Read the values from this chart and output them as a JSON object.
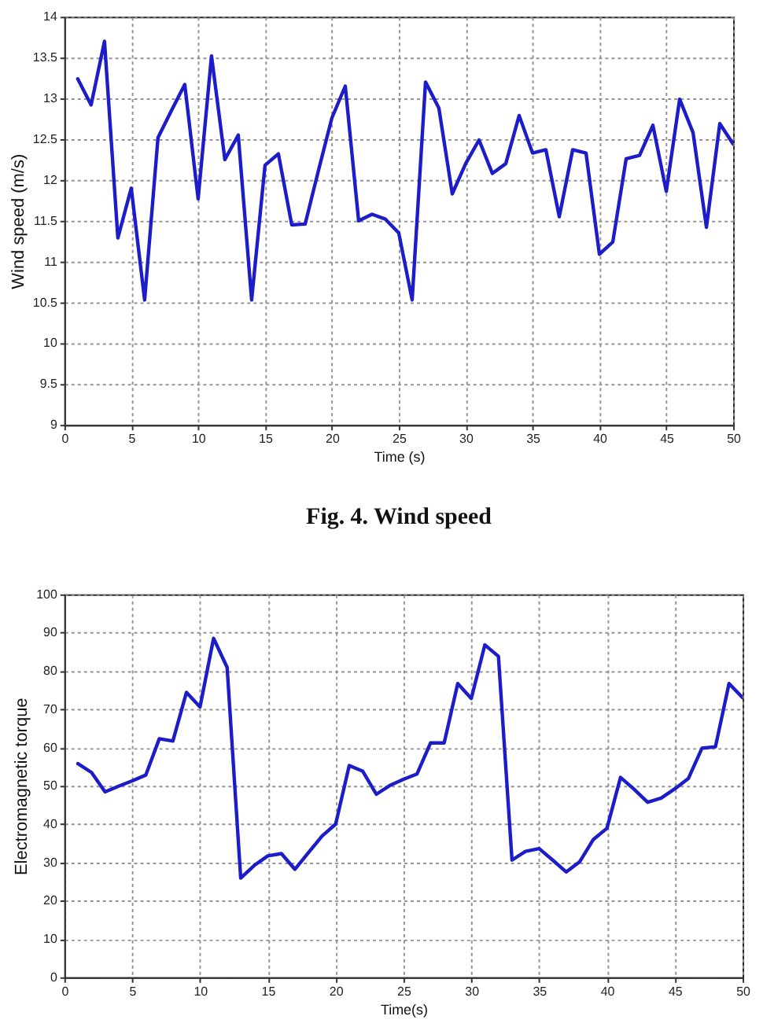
{
  "chart_data": [
    {
      "type": "line",
      "xlabel": "Time (s)",
      "ylabel": "Wind speed (m/s)",
      "annotations": [
        "Fig. 4. Wind speed"
      ],
      "x": [
        1,
        2,
        3,
        4,
        5,
        6,
        7,
        8,
        9,
        10,
        11,
        12,
        13,
        14,
        15,
        16,
        17,
        18,
        19,
        20,
        21,
        22,
        23,
        24,
        25,
        26,
        27,
        28,
        29,
        30,
        31,
        32,
        33,
        34,
        35,
        36,
        37,
        38,
        39,
        40,
        41,
        42,
        43,
        44,
        45,
        46,
        47,
        48,
        49,
        50
      ],
      "series": [
        {
          "color": "#1c1cc8",
          "values": [
            13.24,
            12.92,
            13.7,
            11.29,
            11.9,
            10.53,
            12.52,
            12.85,
            13.17,
            11.77,
            13.52,
            12.25,
            12.55,
            10.53,
            12.18,
            12.32,
            11.45,
            11.46,
            12.12,
            12.76,
            13.15,
            11.5,
            11.58,
            11.52,
            11.35,
            10.53,
            13.2,
            12.88,
            11.83,
            12.2,
            12.49,
            12.08,
            12.2,
            12.79,
            12.33,
            12.37,
            11.55,
            12.37,
            12.33,
            11.09,
            11.24,
            12.26,
            12.3,
            12.67,
            11.86,
            12.99,
            12.58,
            11.42,
            12.69,
            12.44
          ]
        }
      ],
      "xlim": [
        0,
        50
      ],
      "xticks": [
        0,
        5,
        10,
        15,
        20,
        25,
        30,
        35,
        40,
        45,
        50
      ],
      "ylim": [
        9,
        14
      ],
      "yticks": [
        9,
        9.5,
        10,
        10.5,
        11,
        11.5,
        12,
        12.5,
        13,
        13.5,
        14
      ],
      "grid": true,
      "legend": false,
      "marker": "none",
      "line_style": "solid"
    },
    {
      "type": "line",
      "xlabel": "Time(s)",
      "ylabel": "Electromagnetic torque",
      "x": [
        1,
        2,
        3,
        4,
        5,
        6,
        7,
        8,
        9,
        10,
        11,
        12,
        13,
        14,
        15,
        16,
        17,
        18,
        19,
        20,
        21,
        22,
        23,
        24,
        25,
        26,
        27,
        28,
        29,
        30,
        31,
        32,
        33,
        34,
        35,
        36,
        37,
        38,
        39,
        40,
        41,
        42,
        43,
        44,
        45,
        46,
        47,
        48,
        49,
        50
      ],
      "series": [
        {
          "color": "#1c1cc8",
          "values": [
            55.8,
            53.5,
            48.4,
            49.9,
            51.3,
            52.8,
            62.3,
            61.7,
            74.4,
            70.6,
            88.5,
            80.9,
            25.9,
            29.2,
            31.7,
            32.3,
            28.2,
            32.6,
            36.9,
            40,
            55.3,
            53.8,
            47.8,
            50.1,
            51.7,
            53.1,
            61.2,
            61.2,
            76.7,
            72.8,
            86.8,
            83.8,
            30.6,
            32.9,
            33.6,
            30.6,
            27.5,
            30.2,
            36,
            38.9,
            52.2,
            49.1,
            45.7,
            46.8,
            49.2,
            51.9,
            59.8,
            60.2,
            76.7,
            73
          ]
        }
      ],
      "xlim": [
        0,
        50
      ],
      "xticks": [
        0,
        5,
        10,
        15,
        20,
        25,
        30,
        35,
        40,
        45,
        50
      ],
      "ylim": [
        0,
        100
      ],
      "yticks": [
        0,
        10,
        20,
        30,
        40,
        50,
        60,
        70,
        80,
        90,
        100
      ],
      "grid": true,
      "legend": false,
      "marker": "none",
      "line_style": "solid"
    }
  ]
}
